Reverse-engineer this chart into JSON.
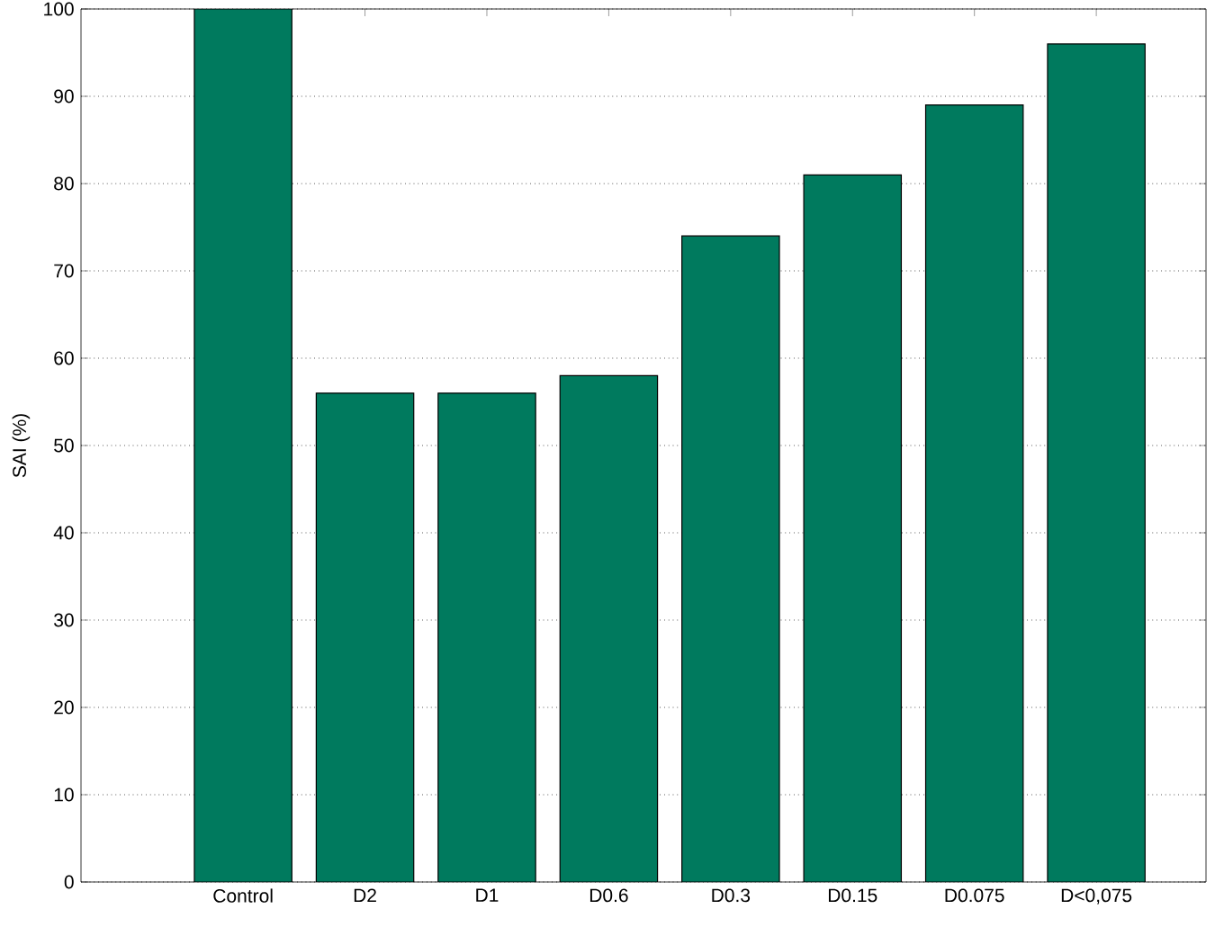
{
  "chart_data": {
    "type": "bar",
    "ylabel": "SAI (%)",
    "categories": [
      "Control",
      "D2",
      "D1",
      "D0.6",
      "D0.3",
      "D0.15",
      "D0.075",
      "D<0,075"
    ],
    "values": [
      100,
      56,
      56,
      58,
      74,
      81,
      89,
      96
    ],
    "color": "#007a5e",
    "ylim": [
      0,
      100
    ],
    "yticks": [
      0,
      10,
      20,
      30,
      40,
      50,
      60,
      70,
      80,
      90,
      100
    ],
    "grid": "y"
  }
}
